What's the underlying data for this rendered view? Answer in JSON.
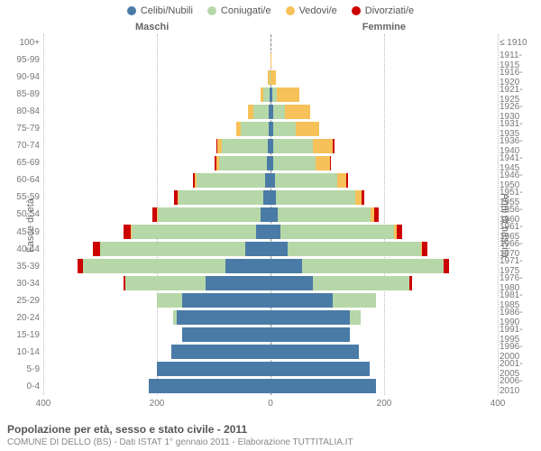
{
  "type": "population-pyramid",
  "title": "Popolazione per età, sesso e stato civile - 2011",
  "subtitle": "COMUNE DI DELLO (BS) - Dati ISTAT 1° gennaio 2011 - Elaborazione TUTTITALIA.IT",
  "side_labels": {
    "left": "Maschi",
    "right": "Femmine"
  },
  "yaxis_label_left": "Fasce di età",
  "yaxis_label_right": "Anni di nascita",
  "legend": [
    {
      "label": "Celibi/Nubili",
      "color": "#4a7ba6"
    },
    {
      "label": "Coniugati/e",
      "color": "#b6d7a8"
    },
    {
      "label": "Vedovi/e",
      "color": "#f6c158"
    },
    {
      "label": "Divorziati/e",
      "color": "#cc0000"
    }
  ],
  "colors": {
    "single": "#4a7ba6",
    "married": "#b6d7a8",
    "widowed": "#f6c158",
    "divorced": "#cc0000",
    "grid": "#bbbbbb",
    "text": "#666666",
    "bg": "#ffffff"
  },
  "xaxis": {
    "max": 400,
    "ticks": [
      400,
      200,
      0,
      200,
      400
    ]
  },
  "label_fontsize": 10,
  "rows": [
    {
      "age": "100+",
      "birth": "≤ 1910",
      "m": {
        "s": 0,
        "c": 0,
        "v": 0,
        "d": 0
      },
      "f": {
        "s": 0,
        "c": 0,
        "v": 0,
        "d": 0
      }
    },
    {
      "age": "95-99",
      "birth": "1911-1915",
      "m": {
        "s": 0,
        "c": 0,
        "v": 0,
        "d": 0
      },
      "f": {
        "s": 0,
        "c": 0,
        "v": 2,
        "d": 0
      }
    },
    {
      "age": "90-94",
      "birth": "1916-1920",
      "m": {
        "s": 0,
        "c": 2,
        "v": 3,
        "d": 0
      },
      "f": {
        "s": 0,
        "c": 0,
        "v": 10,
        "d": 0
      }
    },
    {
      "age": "85-89",
      "birth": "1921-1925",
      "m": {
        "s": 2,
        "c": 10,
        "v": 5,
        "d": 0
      },
      "f": {
        "s": 3,
        "c": 8,
        "v": 40,
        "d": 0
      }
    },
    {
      "age": "80-84",
      "birth": "1926-1930",
      "m": {
        "s": 3,
        "c": 28,
        "v": 8,
        "d": 0
      },
      "f": {
        "s": 5,
        "c": 20,
        "v": 45,
        "d": 0
      }
    },
    {
      "age": "75-79",
      "birth": "1931-1935",
      "m": {
        "s": 3,
        "c": 50,
        "v": 8,
        "d": 0
      },
      "f": {
        "s": 5,
        "c": 40,
        "v": 40,
        "d": 0
      }
    },
    {
      "age": "70-74",
      "birth": "1936-1940",
      "m": {
        "s": 5,
        "c": 80,
        "v": 8,
        "d": 2
      },
      "f": {
        "s": 5,
        "c": 70,
        "v": 35,
        "d": 2
      }
    },
    {
      "age": "65-69",
      "birth": "1941-1945",
      "m": {
        "s": 6,
        "c": 85,
        "v": 5,
        "d": 2
      },
      "f": {
        "s": 5,
        "c": 75,
        "v": 25,
        "d": 2
      }
    },
    {
      "age": "60-64",
      "birth": "1946-1950",
      "m": {
        "s": 10,
        "c": 120,
        "v": 3,
        "d": 4
      },
      "f": {
        "s": 8,
        "c": 110,
        "v": 15,
        "d": 4
      }
    },
    {
      "age": "55-59",
      "birth": "1951-1955",
      "m": {
        "s": 12,
        "c": 150,
        "v": 2,
        "d": 6
      },
      "f": {
        "s": 10,
        "c": 140,
        "v": 10,
        "d": 5
      }
    },
    {
      "age": "50-54",
      "birth": "1956-1960",
      "m": {
        "s": 18,
        "c": 180,
        "v": 2,
        "d": 8
      },
      "f": {
        "s": 12,
        "c": 165,
        "v": 6,
        "d": 8
      }
    },
    {
      "age": "45-49",
      "birth": "1961-1965",
      "m": {
        "s": 25,
        "c": 220,
        "v": 1,
        "d": 12
      },
      "f": {
        "s": 18,
        "c": 200,
        "v": 4,
        "d": 10
      }
    },
    {
      "age": "40-44",
      "birth": "1966-1970",
      "m": {
        "s": 45,
        "c": 255,
        "v": 0,
        "d": 12
      },
      "f": {
        "s": 30,
        "c": 235,
        "v": 2,
        "d": 10
      }
    },
    {
      "age": "35-39",
      "birth": "1971-1975",
      "m": {
        "s": 80,
        "c": 250,
        "v": 0,
        "d": 10
      },
      "f": {
        "s": 55,
        "c": 250,
        "v": 0,
        "d": 10
      }
    },
    {
      "age": "30-34",
      "birth": "1976-1980",
      "m": {
        "s": 115,
        "c": 140,
        "v": 0,
        "d": 4
      },
      "f": {
        "s": 75,
        "c": 170,
        "v": 0,
        "d": 5
      }
    },
    {
      "age": "25-29",
      "birth": "1981-1985",
      "m": {
        "s": 155,
        "c": 45,
        "v": 0,
        "d": 0
      },
      "f": {
        "s": 110,
        "c": 75,
        "v": 0,
        "d": 0
      }
    },
    {
      "age": "20-24",
      "birth": "1986-1990",
      "m": {
        "s": 165,
        "c": 6,
        "v": 0,
        "d": 0
      },
      "f": {
        "s": 140,
        "c": 18,
        "v": 0,
        "d": 0
      }
    },
    {
      "age": "15-19",
      "birth": "1991-1995",
      "m": {
        "s": 155,
        "c": 0,
        "v": 0,
        "d": 0
      },
      "f": {
        "s": 140,
        "c": 0,
        "v": 0,
        "d": 0
      }
    },
    {
      "age": "10-14",
      "birth": "1996-2000",
      "m": {
        "s": 175,
        "c": 0,
        "v": 0,
        "d": 0
      },
      "f": {
        "s": 155,
        "c": 0,
        "v": 0,
        "d": 0
      }
    },
    {
      "age": "5-9",
      "birth": "2001-2005",
      "m": {
        "s": 200,
        "c": 0,
        "v": 0,
        "d": 0
      },
      "f": {
        "s": 175,
        "c": 0,
        "v": 0,
        "d": 0
      }
    },
    {
      "age": "0-4",
      "birth": "2006-2010",
      "m": {
        "s": 215,
        "c": 0,
        "v": 0,
        "d": 0
      },
      "f": {
        "s": 185,
        "c": 0,
        "v": 0,
        "d": 0
      }
    }
  ]
}
